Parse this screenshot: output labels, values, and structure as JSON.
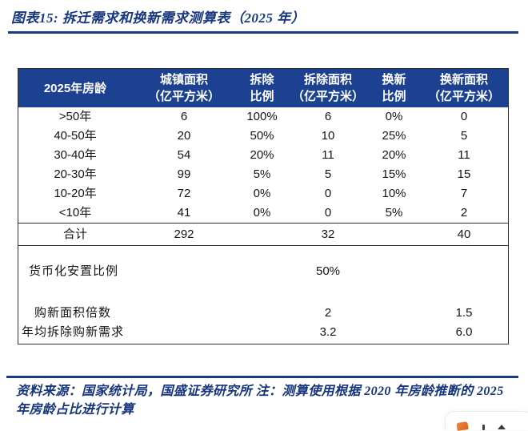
{
  "title": "图表15:  拆迁需求和换新需求测算表（2025 年）",
  "source_note": "资料来源：国家统计局，国盛证券研究所  注：测算使用根据 2020 年房龄推断的 2025 年房龄占比进行计算",
  "colors": {
    "header_bg": "#1d4191",
    "title_blue": "#17367d",
    "rule_blue": "#1a3c87",
    "table_border": "#2f2f2f",
    "badge_orange": "#e8722a"
  },
  "table": {
    "header": [
      {
        "line1": "2025年房龄",
        "line2": ""
      },
      {
        "line1": "城镇面积",
        "line2": "（亿平方米）"
      },
      {
        "line1": "拆除",
        "line2": "比例"
      },
      {
        "line1": "拆除面积",
        "line2": "（亿平方米）"
      },
      {
        "line1": "换新",
        "line2": "比例"
      },
      {
        "line1": "换新面积",
        "line2": "（亿平方米）"
      }
    ],
    "rows": [
      {
        "cells": [
          ">50年",
          "6",
          "100%",
          "6",
          "0%",
          "0"
        ]
      },
      {
        "cells": [
          "40-50年",
          "20",
          "50%",
          "10",
          "25%",
          "5"
        ]
      },
      {
        "cells": [
          "30-40年",
          "54",
          "20%",
          "11",
          "20%",
          "11"
        ]
      },
      {
        "cells": [
          "20-30年",
          "99",
          "5%",
          "5",
          "15%",
          "15"
        ]
      },
      {
        "cells": [
          "10-20年",
          "72",
          "0%",
          "0",
          "10%",
          "7"
        ]
      },
      {
        "cells": [
          "<10年",
          "41",
          "0%",
          "0",
          "5%",
          "2"
        ]
      }
    ],
    "total_row": {
      "cells": [
        "合计",
        "292",
        "",
        "32",
        "",
        "40"
      ]
    },
    "lower_rows": [
      {
        "label": "货币化安置比例",
        "demolition_value": "50%",
        "renewal_value": ""
      },
      {
        "label": "购新面积倍数",
        "demolition_value": "2",
        "renewal_value": "1.5"
      },
      {
        "label": "年均拆除购新需求",
        "demolition_value": "3.2",
        "renewal_value": "6.0"
      }
    ]
  },
  "chart_data": {
    "type": "table",
    "title": "图表15: 拆迁需求和换新需求测算表（2025 年）",
    "columns": [
      "2025年房龄",
      "城镇面积（亿平方米）",
      "拆除比例",
      "拆除面积（亿平方米）",
      "换新比例",
      "换新面积（亿平方米）"
    ],
    "rows": [
      [
        ">50年",
        6,
        "100%",
        6,
        "0%",
        0
      ],
      [
        "40-50年",
        20,
        "50%",
        10,
        "25%",
        5
      ],
      [
        "30-40年",
        54,
        "20%",
        11,
        "20%",
        11
      ],
      [
        "20-30年",
        99,
        "5%",
        5,
        "15%",
        15
      ],
      [
        "10-20年",
        72,
        "0%",
        0,
        "10%",
        7
      ],
      [
        "<10年",
        41,
        "0%",
        0,
        "5%",
        2
      ],
      [
        "合计",
        292,
        "",
        32,
        "",
        40
      ]
    ],
    "extra_rows": [
      [
        "货币化安置比例",
        "",
        "",
        "50%",
        "",
        ""
      ],
      [
        "购新面积倍数",
        "",
        "",
        "2",
        "",
        "1.5"
      ],
      [
        "年均拆除购新需求",
        "",
        "",
        "3.2",
        "",
        "6.0"
      ]
    ],
    "source": "资料来源：国家统计局，国盛证券研究所 注：测算使用根据 2020 年房龄推断的 2025 年房龄占比进行计算"
  }
}
